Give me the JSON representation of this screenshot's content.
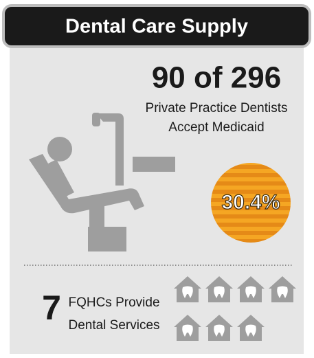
{
  "header": {
    "title": "Dental Care Supply"
  },
  "dentists": {
    "headline": "90 of 296",
    "line1": "Private Practice Dentists",
    "line2": "Accept Medicaid",
    "percent_label": "30.4%"
  },
  "fqhc": {
    "count": 7,
    "line1": "FQHCs Provide",
    "line2": "Dental Services"
  }
}
